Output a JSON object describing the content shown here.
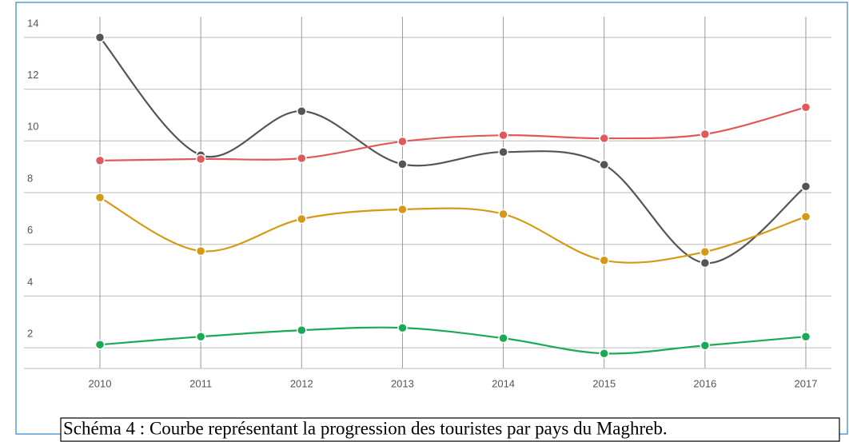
{
  "chart_data": {
    "type": "line",
    "caption": "Schéma 4 : Courbe représentant la progression des touristes par pays du Maghreb.",
    "categories": [
      "2010",
      "2011",
      "2012",
      "2013",
      "2014",
      "2015",
      "2016",
      "2017"
    ],
    "series": [
      {
        "color": "#555555",
        "values": [
          14.0,
          9.45,
          11.15,
          9.1,
          9.57,
          9.08,
          5.28,
          8.24
        ]
      },
      {
        "color": "#e05a5a",
        "values": [
          9.24,
          9.3,
          9.33,
          9.98,
          10.22,
          10.1,
          10.26,
          11.3
        ]
      },
      {
        "color": "#d49a14",
        "values": [
          7.81,
          5.74,
          6.98,
          7.35,
          7.17,
          5.38,
          5.71,
          7.07
        ]
      },
      {
        "color": "#1aaa55",
        "values": [
          2.12,
          2.43,
          2.68,
          2.77,
          2.37,
          1.78,
          2.09,
          2.43
        ]
      }
    ],
    "ylim": [
      1.2,
      14.8
    ],
    "yticks": [
      2,
      4,
      6,
      8,
      10,
      12,
      14
    ],
    "grid": true
  }
}
